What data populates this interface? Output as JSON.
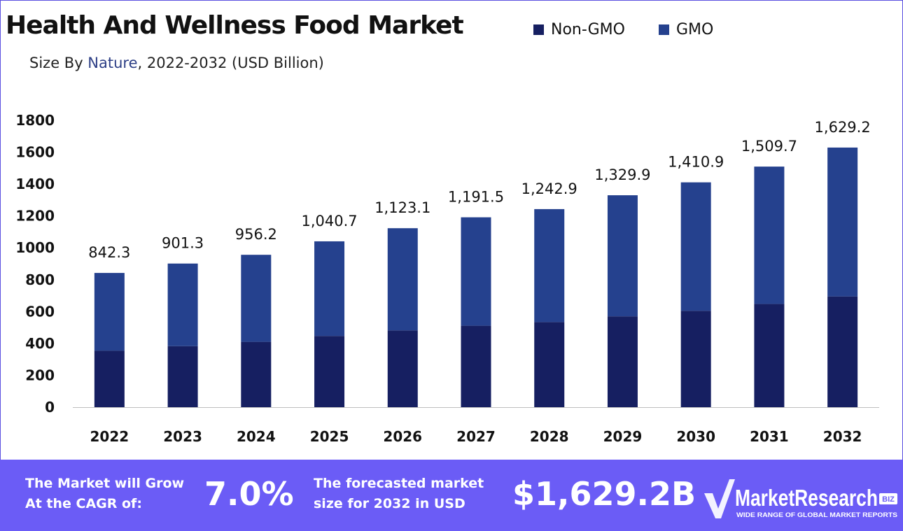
{
  "header": {
    "title": "Health And Wellness Food Market",
    "subtitle_prefix": "Size By ",
    "subtitle_accent": "Nature",
    "subtitle_suffix": ", 2022-2032 (USD Billion)"
  },
  "legend": [
    {
      "label": "Non-GMO",
      "color": "#161f61"
    },
    {
      "label": "GMO",
      "color": "#25418e"
    }
  ],
  "colors": {
    "non_gmo": "#161f61",
    "gmo": "#25418e",
    "footer": "#6b5cf6",
    "frame": "#5a4fe0"
  },
  "chart_data": {
    "type": "bar",
    "stacked": true,
    "categories": [
      "2022",
      "2023",
      "2024",
      "2025",
      "2026",
      "2027",
      "2028",
      "2029",
      "2030",
      "2031",
      "2032"
    ],
    "series": [
      {
        "name": "Non-GMO",
        "values": [
          355,
          383,
          410,
          447,
          482,
          511,
          534,
          570,
          605,
          648,
          695
        ]
      },
      {
        "name": "GMO",
        "values": [
          487.3,
          518.3,
          546.2,
          593.7,
          641.1,
          680.5,
          708.9,
          759.9,
          805.9,
          861.7,
          934.2
        ]
      }
    ],
    "totals": [
      842.3,
      901.3,
      956.2,
      1040.7,
      1123.1,
      1191.5,
      1242.9,
      1329.9,
      1410.9,
      1509.7,
      1629.2
    ],
    "total_labels": [
      "842.3",
      "901.3",
      "956.2",
      "1,040.7",
      "1,123.1",
      "1,191.5",
      "1,242.9",
      "1,329.9",
      "1,410.9",
      "1,509.7",
      "1,629.2"
    ],
    "y_ticks": [
      "0",
      "200",
      "400",
      "600",
      "800",
      "1000",
      "1200",
      "1400",
      "1600",
      "1800"
    ],
    "ylim": [
      0,
      1800
    ],
    "grid": false,
    "legend_position": "top-right"
  },
  "footer": {
    "cagr_text_line1": "The Market will Grow",
    "cagr_text_line2": "At the CAGR of:",
    "cagr_value": "7.0%",
    "forecast_text_line1": "The forecasted market",
    "forecast_text_line2": "size for 2032 in USD",
    "forecast_value": "$1,629.2B",
    "logo_text": "MarketResearch",
    "logo_badge": "BIZ",
    "logo_tagline": "WIDE RANGE OF GLOBAL MARKET REPORTS"
  }
}
